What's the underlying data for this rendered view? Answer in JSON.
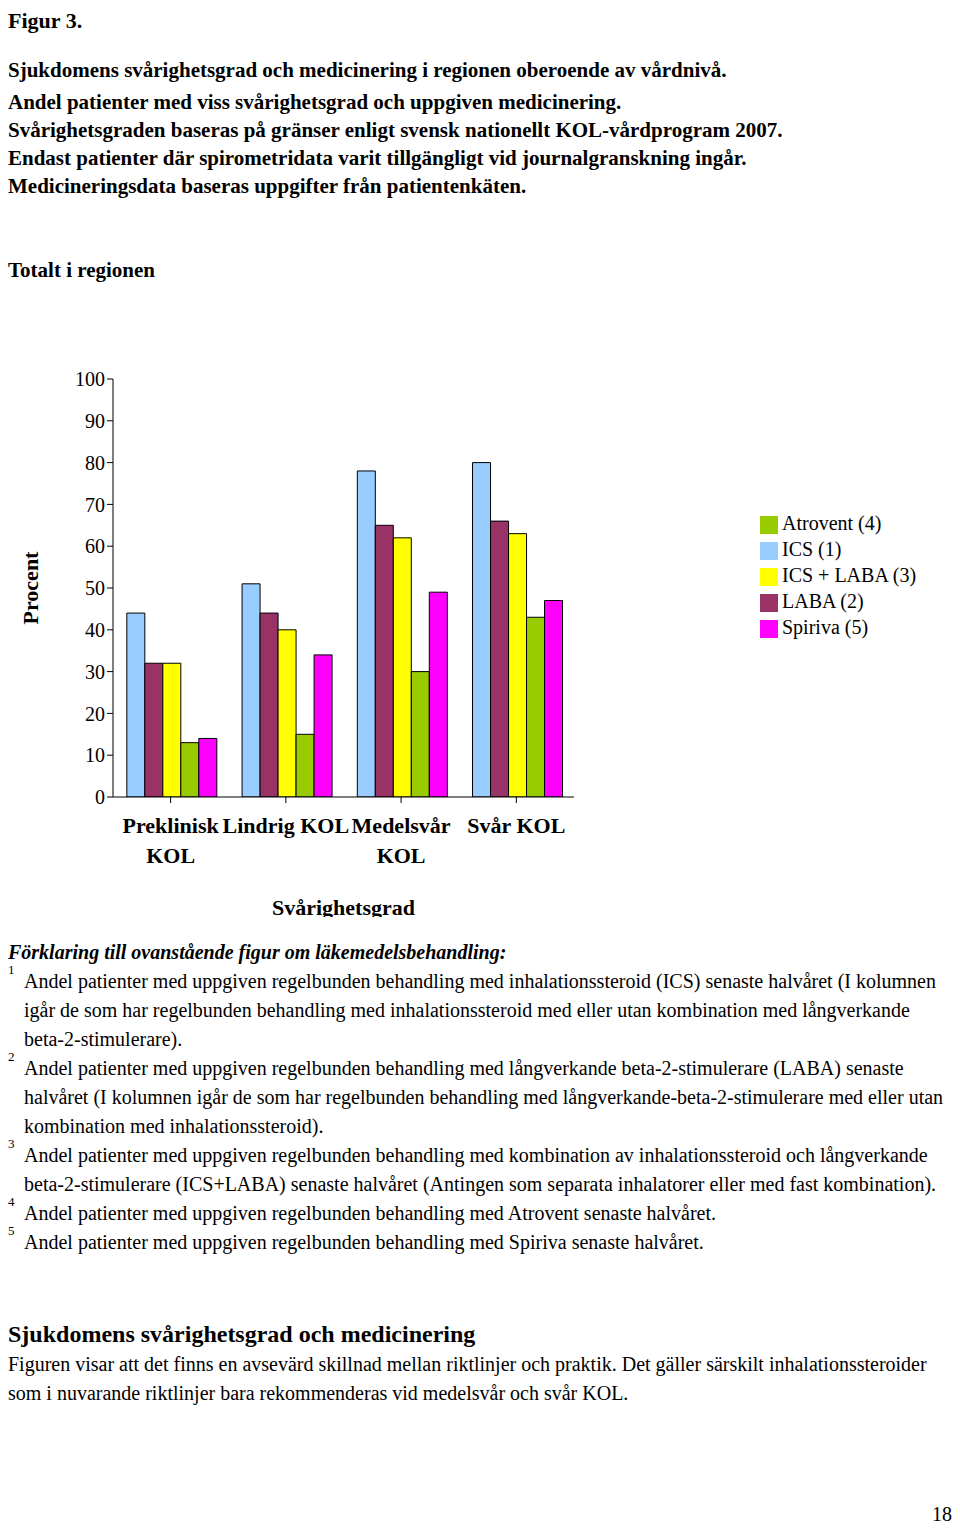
{
  "header": {
    "figure": "Figur 3.",
    "title": "Sjukdomens svårighetsgrad och medicinering i regionen oberoende av vårdnivå.",
    "description": [
      "Andel patienter med viss svårighetsgrad och uppgiven medicinering.",
      "Svårighetsgraden baseras på gränser enligt svensk nationellt KOL-vårdprogram 2007.",
      "Endast patienter där spirometridata varit tillgängligt vid journalgranskning ingår.",
      "Medicineringsdata baseras uppgifter från patientenkäten."
    ]
  },
  "chart_data": {
    "type": "bar",
    "title": "Totalt i regionen",
    "x_label": "Svårighetsgrad",
    "y_label": "Procent",
    "categories": [
      "Preklinisk KOL",
      "Lindrig KOL",
      "Medelsvår KOL",
      "Svår KOL"
    ],
    "series": [
      {
        "name": "ICS (1)",
        "color": "#99ccff",
        "values": [
          44,
          51,
          78,
          80
        ]
      },
      {
        "name": "LABA (2)",
        "color": "#993366",
        "values": [
          32,
          44,
          65,
          66
        ]
      },
      {
        "name": "ICS + LABA (3)",
        "color": "#ffff00",
        "values": [
          32,
          40,
          62,
          63
        ]
      },
      {
        "name": "Atrovent (4)",
        "color": "#99cc00",
        "values": [
          13,
          15,
          30,
          43
        ]
      },
      {
        "name": "Spiriva (5)",
        "color": "#ff00ff",
        "values": [
          14,
          34,
          49,
          47
        ]
      }
    ],
    "ylim": [
      0,
      100
    ],
    "yticks": [
      0,
      10,
      20,
      30,
      40,
      50,
      60,
      70,
      80,
      90,
      100
    ],
    "grid": false,
    "legend": "right"
  },
  "footnotes": {
    "heading": "Förklaring till ovanstående figur om läkemedelsbehandling:",
    "items": [
      {
        "number": 1,
        "text": "Andel patienter med uppgiven regelbunden behandling med inhalationssteroid (ICS) senaste halvåret (I kolumnen igår de som har regelbunden behandling med inhalationssteroid med eller utan kombination med långverkande beta-2-stimulerare)."
      },
      {
        "number": 2,
        "text": "Andel patienter med uppgiven regelbunden behandling med långverkande beta-2-stimulerare (LABA) senaste halvåret (I kolumnen igår de som har regelbunden behandling med långverkande-beta-2-stimulerare med eller utan kombination med inhalationssteroid)."
      },
      {
        "number": 3,
        "text": "Andel patienter med uppgiven regelbunden behandling med kombination av inhalationssteroid och långverkande beta-2-stimulerare (ICS+LABA) senaste halvåret (Antingen som separata inhalatorer eller med fast kombination)."
      },
      {
        "number": 4,
        "text": "Andel patienter med uppgiven regelbunden behandling med Atrovent senaste halvåret."
      },
      {
        "number": 5,
        "text": "Andel patienter med uppgiven regelbunden behandling med Spiriva senaste halvåret."
      }
    ]
  },
  "section": {
    "heading": "Sjukdomens svårighetsgrad och medicinering",
    "text": "Figuren visar att det finns en avsevärd skillnad mellan riktlinjer och praktik. Det gäller särskilt inhalationssteroider som i nuvarande riktlinjer bara rekommenderas vid medelsvår och svår KOL."
  },
  "page_number": 18
}
